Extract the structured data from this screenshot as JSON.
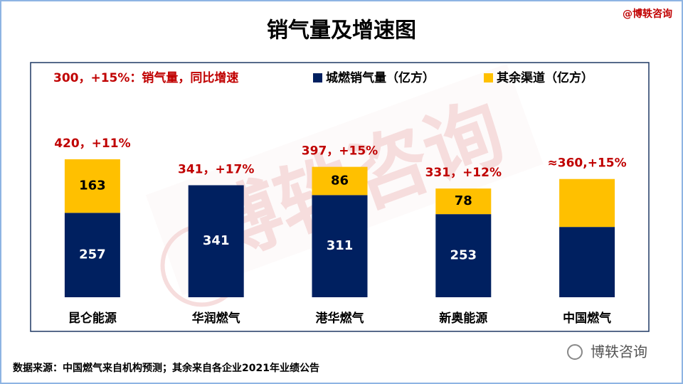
{
  "chart_data": {
    "type": "stacked-bar",
    "title": "销气量及增速图",
    "brand": "@博轶咨询",
    "watermark": "博轶咨询",
    "legend_note": "300，+15%：销气量，同比增速",
    "categories": [
      "昆仑能源",
      "华润燃气",
      "港华燃气",
      "新奥能源",
      "中国燃气"
    ],
    "series": [
      {
        "name": "城燃销气量（亿方）",
        "color": "#002060",
        "label_color": "#ffffff",
        "values": [
          257,
          341,
          311,
          253,
          214
        ],
        "value_labels": [
          "257",
          "341",
          "311",
          "253",
          null
        ]
      },
      {
        "name": "其余渠道（亿方）",
        "color": "#ffc000",
        "label_color": "#000000",
        "values": [
          163,
          0,
          86,
          78,
          146
        ],
        "value_labels": [
          "163",
          null,
          "86",
          "78",
          null
        ]
      }
    ],
    "total_labels": [
      "420，+11%",
      "341，+17%",
      "397，+15%",
      "331，+12%",
      "≈360,+15%"
    ],
    "ylim": [
      0,
      420
    ],
    "source": "数据来源：中国燃气来自机构预测；其余来自各企业2021年业绩公告",
    "footer_brand": "博轶咨询"
  }
}
